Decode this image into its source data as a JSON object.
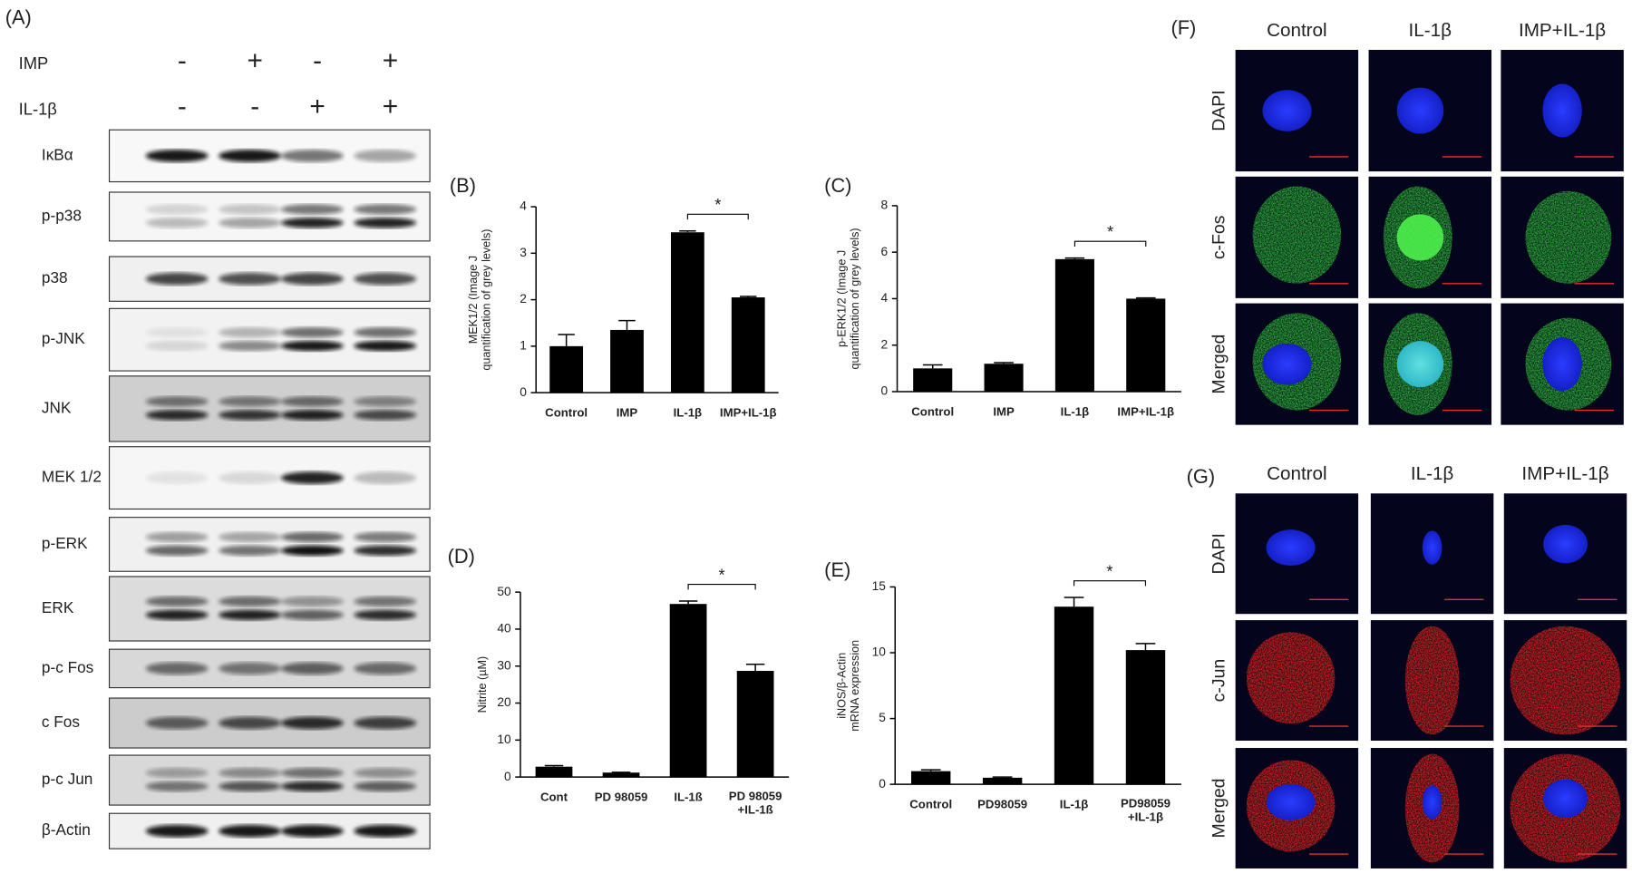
{
  "blot": {
    "panel_label": "(A)",
    "conditions": [
      {
        "name": "IMP",
        "signs": [
          "-",
          "+",
          "-",
          "+"
        ]
      },
      {
        "name": "IL-1β",
        "signs": [
          "-",
          "-",
          "+",
          "+"
        ]
      }
    ],
    "proteins": [
      "IκBα",
      "p-p38",
      "p38",
      "p-JNK",
      "JNK",
      "MEK 1/2",
      "p-ERK",
      "ERK",
      "p-c Fos",
      "c Fos",
      "p-c Jun",
      "β-Actin"
    ]
  },
  "chart_data": [
    {
      "type": "bar",
      "panel_label": "(B)",
      "y_label": "MEK1/2 (Image J\nquantification of grey levels)",
      "categories": [
        "Control",
        "IMP",
        "IL-1β",
        "IMP+IL-1β"
      ],
      "values": [
        1.0,
        1.35,
        3.45,
        2.05
      ],
      "errors": [
        0.25,
        0.2,
        0.03,
        0.02
      ],
      "color": "#000000",
      "ylim": [
        0,
        4
      ],
      "yticks": [
        0,
        1,
        2,
        3,
        4
      ],
      "significance": "*"
    },
    {
      "type": "bar",
      "panel_label": "(C)",
      "y_label": "p-ERK1/2 (Image J\nquantification of grey levels)",
      "categories": [
        "Control",
        "IMP",
        "IL-1β",
        "IMP+IL-1β"
      ],
      "values": [
        1.0,
        1.2,
        5.7,
        4.0
      ],
      "errors": [
        0.15,
        0.05,
        0.05,
        0.03
      ],
      "color": "#000000",
      "ylim": [
        0,
        8
      ],
      "yticks": [
        0,
        2,
        4,
        6,
        8
      ],
      "significance": "*"
    },
    {
      "type": "bar",
      "panel_label": "(D)",
      "y_label": "Nitrite (µM)",
      "categories": [
        "Cont",
        "PD 98059",
        "IL-1ß",
        "PD 98059\n+IL-1ß"
      ],
      "values": [
        2.8,
        1.2,
        46.8,
        28.7
      ],
      "errors": [
        0.3,
        0.1,
        0.8,
        1.8
      ],
      "color": "#000000",
      "ylim": [
        0,
        50
      ],
      "yticks": [
        0,
        10,
        20,
        30,
        40,
        50
      ],
      "significance": "*"
    },
    {
      "type": "bar",
      "panel_label": "(E)",
      "y_label": "iNOS/β-Actin\nmRNA expression",
      "categories": [
        "Control",
        "PD98059",
        "IL-1β",
        "PD98059\n+IL-1β"
      ],
      "values": [
        1.0,
        0.5,
        13.5,
        10.2
      ],
      "errors": [
        0.1,
        0.05,
        0.7,
        0.5
      ],
      "color": "#000000",
      "ylim": [
        0,
        15
      ],
      "yticks": [
        0,
        5,
        10,
        15
      ],
      "significance": "*"
    }
  ],
  "microscopy": [
    {
      "panel_label": "(F)",
      "columns": [
        "Control",
        "IL-1β",
        "IMP+IL-1β"
      ],
      "rows": [
        "DAPI",
        "c-Fos",
        "Merged"
      ]
    },
    {
      "panel_label": "(G)",
      "columns": [
        "Control",
        "IL-1β",
        "IMP+IL-1β"
      ],
      "rows": [
        "DAPI",
        "c-Jun",
        "Merged"
      ]
    }
  ]
}
